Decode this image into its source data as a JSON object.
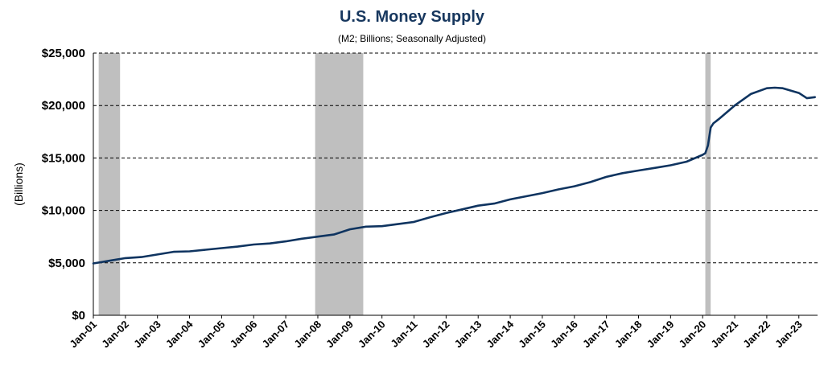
{
  "colors": {
    "line": "#0f3460",
    "title": "#17375e",
    "recession": "#bfbfbf",
    "grid": "#000000"
  },
  "chart_data": {
    "type": "line",
    "title": "U.S. Money Supply",
    "subtitle": "(M2; Billions; Seasonally Adjusted)",
    "ylabel": "(Billions)",
    "xlabel": "",
    "ylim": [
      0,
      25000
    ],
    "yticks": [
      0,
      5000,
      10000,
      15000,
      20000,
      25000
    ],
    "ytick_labels": [
      "$0",
      "$5,000",
      "$10,000",
      "$15,000",
      "$20,000",
      "$25,000"
    ],
    "xlim": [
      "2001-01",
      "2023-08"
    ],
    "xtick_labels": [
      "Jan-01",
      "Jan-02",
      "Jan-03",
      "Jan-04",
      "Jan-05",
      "Jan-06",
      "Jan-07",
      "Jan-08",
      "Jan-09",
      "Jan-10",
      "Jan-11",
      "Jan-12",
      "Jan-13",
      "Jan-14",
      "Jan-15",
      "Jan-16",
      "Jan-17",
      "Jan-18",
      "Jan-19",
      "Jan-20",
      "Jan-21",
      "Jan-22",
      "Jan-23"
    ],
    "grid": "horizontal dashed",
    "recession_shading": [
      {
        "start": "2001-03",
        "end": "2001-11"
      },
      {
        "start": "2007-12",
        "end": "2009-06"
      },
      {
        "start": "2020-02",
        "end": "2020-04"
      }
    ],
    "series": [
      {
        "x": [
          "2001-01",
          "2001-07",
          "2002-01",
          "2002-07",
          "2003-01",
          "2003-07",
          "2004-01",
          "2004-07",
          "2005-01",
          "2005-07",
          "2006-01",
          "2006-07",
          "2007-01",
          "2007-07",
          "2008-01",
          "2008-07",
          "2009-01",
          "2009-07",
          "2010-01",
          "2010-07",
          "2011-01",
          "2011-07",
          "2011-10",
          "2012-01",
          "2012-07",
          "2013-01",
          "2013-07",
          "2014-01",
          "2014-07",
          "2015-01",
          "2015-07",
          "2016-01",
          "2016-07",
          "2017-01",
          "2017-07",
          "2018-01",
          "2018-07",
          "2019-01",
          "2019-07",
          "2020-01",
          "2020-02",
          "2020-03",
          "2020-04",
          "2020-05",
          "2020-07",
          "2021-01",
          "2021-07",
          "2022-01",
          "2022-04",
          "2022-07",
          "2023-01",
          "2023-04",
          "2023-07"
        ],
        "values": [
          4950,
          5200,
          5450,
          5550,
          5800,
          6050,
          6100,
          6250,
          6400,
          6550,
          6750,
          6850,
          7050,
          7300,
          7500,
          7700,
          8200,
          8450,
          8500,
          8700,
          8900,
          9350,
          9550,
          9750,
          10100,
          10450,
          10650,
          11050,
          11350,
          11650,
          12000,
          12300,
          12700,
          13200,
          13550,
          13800,
          14050,
          14300,
          14650,
          15300,
          15450,
          16200,
          17900,
          18300,
          18700,
          20000,
          21100,
          21650,
          21700,
          21650,
          21200,
          20700,
          20800
        ]
      }
    ]
  }
}
